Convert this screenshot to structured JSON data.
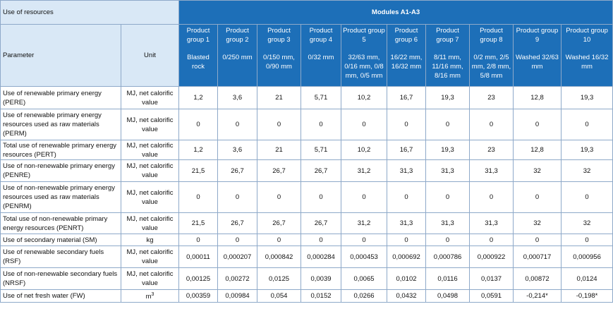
{
  "header": {
    "use_of_resources": "Use of resources",
    "modules": "Modules A1-A3",
    "parameter": "Parameter",
    "unit": "Unit",
    "groups": [
      {
        "name": "Product group 1",
        "spec": "Blasted rock"
      },
      {
        "name": "Product group 2",
        "spec": "0/250 mm"
      },
      {
        "name": "Product group 3",
        "spec": "0/150 mm, 0/90 mm"
      },
      {
        "name": "Product group 4",
        "spec": "0/32 mm"
      },
      {
        "name": "Product group 5",
        "spec": "32/63 mm, 0/16 mm, 0/8 mm, 0/5 mm"
      },
      {
        "name": "Product group 6",
        "spec": "16/22 mm, 16/32 mm"
      },
      {
        "name": "Product group 7",
        "spec": "8/11 mm, 11/16 mm, 8/16 mm"
      },
      {
        "name": "Product group 8",
        "spec": "0/2 mm, 2/5 mm, 2/8 mm, 5/8 mm"
      },
      {
        "name": "Product group 9",
        "spec": "Washed 32/63 mm"
      },
      {
        "name": "Product group 10",
        "spec": "Washed 16/32 mm"
      }
    ]
  },
  "rows": [
    {
      "param": "Use of renewable primary energy (PERE)",
      "unit": "MJ, net calorific value",
      "values": [
        "1,2",
        "3,6",
        "21",
        "5,71",
        "10,2",
        "16,7",
        "19,3",
        "23",
        "12,8",
        "19,3"
      ]
    },
    {
      "param": "Use of renewable primary energy resources used as raw materials (PERM)",
      "unit": "MJ, net calorific value",
      "values": [
        "0",
        "0",
        "0",
        "0",
        "0",
        "0",
        "0",
        "0",
        "0",
        "0"
      ]
    },
    {
      "param": "Total use of renewable primary energy resources (PERT)",
      "unit": "MJ, net calorific value",
      "values": [
        "1,2",
        "3,6",
        "21",
        "5,71",
        "10,2",
        "16,7",
        "19,3",
        "23",
        "12,8",
        "19,3"
      ]
    },
    {
      "param": "Use of non-renewable primary energy (PENRE)",
      "unit": "MJ, net calorific value",
      "values": [
        "21,5",
        "26,7",
        "26,7",
        "26,7",
        "31,2",
        "31,3",
        "31,3",
        "31,3",
        "32",
        "32"
      ]
    },
    {
      "param": "Use of non-renewable primary energy resources used as raw materials (PENRM)",
      "unit": "MJ, net calorific value",
      "values": [
        "0",
        "0",
        "0",
        "0",
        "0",
        "0",
        "0",
        "0",
        "0",
        "0"
      ]
    },
    {
      "param": "Total use of non-renewable primary energy resources (PENRT)",
      "unit": "MJ, net calorific value",
      "values": [
        "21,5",
        "26,7",
        "26,7",
        "26,7",
        "31,2",
        "31,3",
        "31,3",
        "31,3",
        "32",
        "32"
      ]
    },
    {
      "param": "Use of secondary material (SM)",
      "unit": "kg",
      "values": [
        "0",
        "0",
        "0",
        "0",
        "0",
        "0",
        "0",
        "0",
        "0",
        "0"
      ]
    },
    {
      "param": "Use of renewable secondary fuels (RSF)",
      "unit": "MJ, net calorific value",
      "values": [
        "0,00011",
        "0,000207",
        "0,000842",
        "0,000284",
        "0,000453",
        "0,000692",
        "0,000786",
        "0,000922",
        "0,000717",
        "0,000956"
      ]
    },
    {
      "param": "Use of non-renewable secondary fuels (NRSF)",
      "unit": "MJ, net calorific value",
      "values": [
        "0,00125",
        "0,00272",
        "0,0125",
        "0,0039",
        "0,0065",
        "0,0102",
        "0,0116",
        "0,0137",
        "0,00872",
        "0,0124"
      ]
    },
    {
      "param": "Use of net fresh water (FW)",
      "unit": "m",
      "unit_sup": "3",
      "values": [
        "0,00359",
        "0,00984",
        "0,054",
        "0,0152",
        "0,0266",
        "0,0432",
        "0,0498",
        "0,0591",
        "-0,214*",
        "-0,198*"
      ]
    }
  ]
}
